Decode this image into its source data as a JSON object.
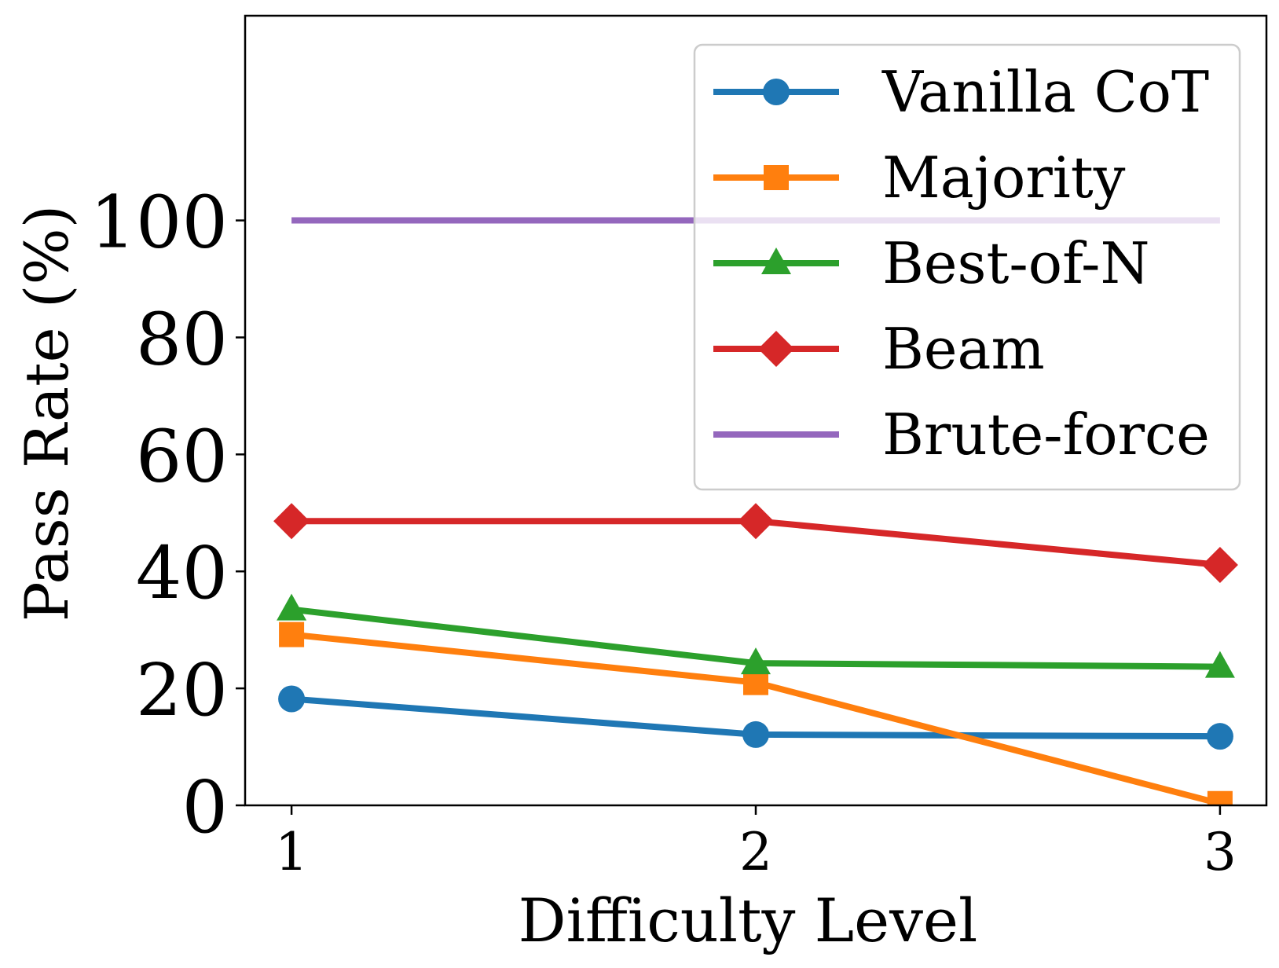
{
  "chart_data": {
    "type": "line",
    "title": "",
    "xlabel": "Difficulty Level",
    "ylabel": "Pass Rate (%)",
    "x": [
      1,
      2,
      3
    ],
    "xlim": [
      0.9,
      3.1
    ],
    "ylim": [
      0,
      135
    ],
    "xticks": [
      "1",
      "2",
      "3"
    ],
    "yticks": [
      "0",
      "20",
      "40",
      "60",
      "80",
      "100"
    ],
    "grid": false,
    "legend_position": "top-right",
    "series": [
      {
        "name": "Vanilla CoT",
        "color": "#1f77b4",
        "marker": "circle",
        "values": [
          18.2,
          12.1,
          11.8
        ]
      },
      {
        "name": "Majority",
        "color": "#ff7f0e",
        "marker": "square",
        "values": [
          29.2,
          21.0,
          0.3
        ]
      },
      {
        "name": "Best-of-N",
        "color": "#2ca02c",
        "marker": "triangle",
        "values": [
          33.5,
          24.3,
          23.7
        ]
      },
      {
        "name": "Beam",
        "color": "#d62728",
        "marker": "diamond",
        "values": [
          48.6,
          48.6,
          41.1
        ]
      },
      {
        "name": "Brute-force",
        "color": "#9467bd",
        "marker": "none",
        "values": [
          100,
          100,
          100
        ]
      }
    ]
  }
}
